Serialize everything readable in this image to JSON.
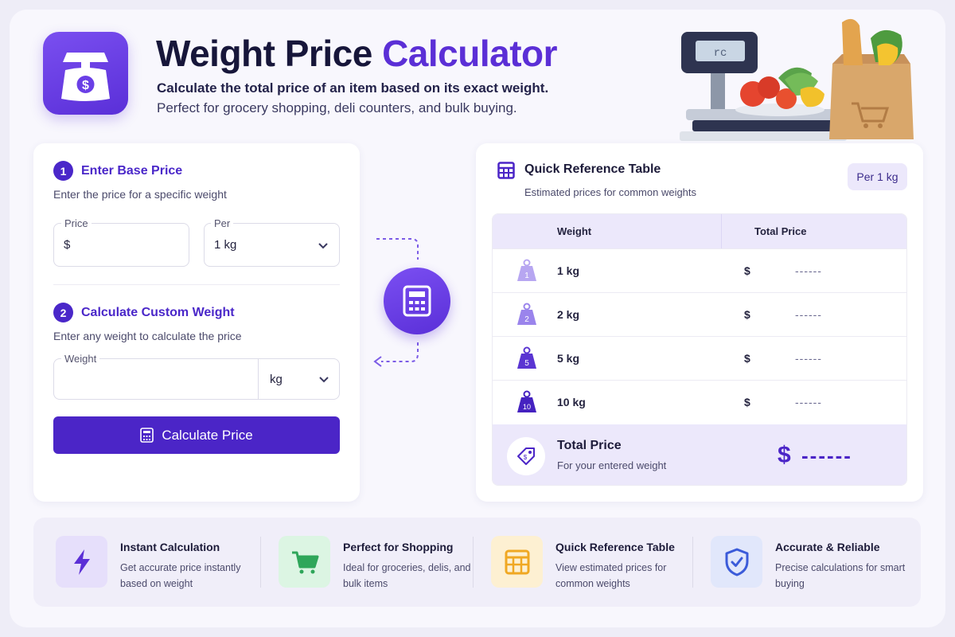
{
  "header": {
    "title_main": "Weight Price",
    "title_accent": "Calculator",
    "subtitle_line1": "Calculate the total price of an item based on its exact weight.",
    "subtitle_line2": "Perfect for grocery shopping, deli counters, and bulk buying.",
    "scale_display": "rc"
  },
  "base_price": {
    "step": "1",
    "title": "Enter Base Price",
    "description": "Enter the price for a specific weight",
    "price_label": "Price",
    "price_value": "$",
    "per_label": "Per",
    "per_value": "1 kg"
  },
  "custom_weight": {
    "step": "2",
    "title": "Calculate Custom Weight",
    "description": "Enter any weight to calculate the price",
    "weight_label": "Weight",
    "weight_value": "",
    "unit_value": "kg",
    "button_label": "Calculate Price"
  },
  "reference": {
    "title": "Quick Reference Table",
    "subtitle": "Estimated prices for common weights",
    "badge": "Per 1 kg",
    "col_weight": "Weight",
    "col_price": "Total Price",
    "rows": [
      {
        "icon_num": "1",
        "weight": "1 kg",
        "currency": "$",
        "price": "------"
      },
      {
        "icon_num": "2",
        "weight": "2 kg",
        "currency": "$",
        "price": "------"
      },
      {
        "icon_num": "5",
        "weight": "5 kg",
        "currency": "$",
        "price": "------"
      },
      {
        "icon_num": "10",
        "weight": "10 kg",
        "currency": "$",
        "price": "------"
      }
    ],
    "total_label": "Total Price",
    "total_sub": "For your entered weight",
    "total_currency": "$",
    "total_value": "------"
  },
  "features": [
    {
      "icon": "lightning-icon",
      "title": "Instant Calculation",
      "desc": "Get accurate price instantly based on weight"
    },
    {
      "icon": "shopping-cart-icon",
      "title": "Perfect for Shopping",
      "desc": "Ideal for groceries, delis, and bulk items"
    },
    {
      "icon": "table-icon",
      "title": "Quick Reference Table",
      "desc": "View estimated prices for common weights"
    },
    {
      "icon": "shield-check-icon",
      "title": "Accurate & Reliable",
      "desc": "Precise calculations for smart buying"
    }
  ],
  "colors": {
    "primary": "#4b25c7",
    "accent_purple": "#5b2fd6",
    "lavender": "#ece8fb",
    "feature_green": "#dcf5e3",
    "feature_yellow": "#fdf0d2",
    "feature_blue": "#e1e7fb",
    "feature_purple": "#e6dffb"
  }
}
